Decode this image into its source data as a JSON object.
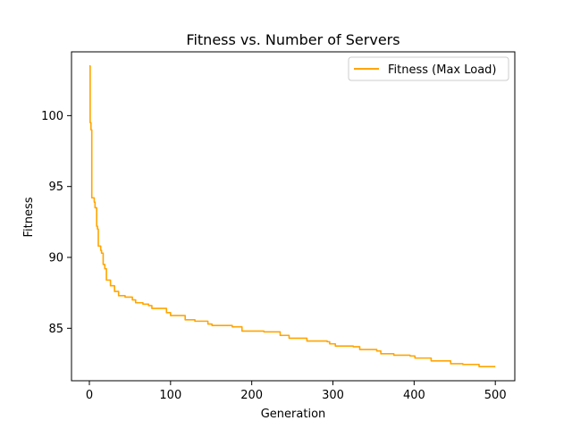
{
  "chart_data": {
    "type": "line",
    "title": "Fitness vs. Number of Servers",
    "xlabel": "Generation",
    "ylabel": "Fitness",
    "xlim": [
      -22,
      524
    ],
    "ylim": [
      81.3,
      104.5
    ],
    "xticks": [
      0,
      100,
      200,
      300,
      400,
      500
    ],
    "yticks": [
      85,
      90,
      95,
      100
    ],
    "grid": false,
    "legend_position": "top-right",
    "series": [
      {
        "name": "Fitness (Max Load)",
        "color": "#ffa500",
        "step_points": [
          [
            0,
            103.5
          ],
          [
            1,
            99.5
          ],
          [
            2,
            99.0
          ],
          [
            3,
            94.2
          ],
          [
            6,
            93.9
          ],
          [
            7,
            93.5
          ],
          [
            9,
            92.2
          ],
          [
            10,
            92.0
          ],
          [
            11,
            90.8
          ],
          [
            14,
            90.5
          ],
          [
            15,
            90.3
          ],
          [
            17,
            89.5
          ],
          [
            19,
            89.2
          ],
          [
            21,
            88.4
          ],
          [
            26,
            88.0
          ],
          [
            31,
            87.6
          ],
          [
            36,
            87.3
          ],
          [
            44,
            87.2
          ],
          [
            53,
            87.0
          ],
          [
            57,
            86.8
          ],
          [
            66,
            86.7
          ],
          [
            73,
            86.6
          ],
          [
            77,
            86.4
          ],
          [
            95,
            86.1
          ],
          [
            100,
            85.9
          ],
          [
            118,
            85.6
          ],
          [
            130,
            85.5
          ],
          [
            146,
            85.3
          ],
          [
            151,
            85.2
          ],
          [
            176,
            85.1
          ],
          [
            188,
            84.8
          ],
          [
            215,
            84.75
          ],
          [
            235,
            84.5
          ],
          [
            246,
            84.3
          ],
          [
            268,
            84.1
          ],
          [
            293,
            84.05
          ],
          [
            296,
            83.9
          ],
          [
            303,
            83.75
          ],
          [
            325,
            83.7
          ],
          [
            333,
            83.5
          ],
          [
            354,
            83.4
          ],
          [
            359,
            83.2
          ],
          [
            375,
            83.1
          ],
          [
            395,
            83.05
          ],
          [
            401,
            82.9
          ],
          [
            421,
            82.7
          ],
          [
            445,
            82.5
          ],
          [
            460,
            82.45
          ],
          [
            480,
            82.3
          ],
          [
            500,
            82.3
          ]
        ]
      }
    ]
  }
}
